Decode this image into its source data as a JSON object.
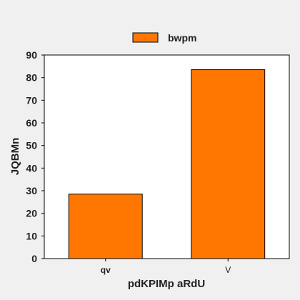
{
  "chart_data": {
    "type": "bar",
    "categories": [
      "qv",
      "V"
    ],
    "series": [
      {
        "name": "bwpm",
        "values": [
          28.5,
          83.5
        ]
      }
    ],
    "xlabel": "pdKPIMp  aRdU",
    "ylabel": "JQBMn",
    "ylim": [
      0,
      90
    ],
    "yticks": [
      0,
      10,
      20,
      30,
      40,
      50,
      60,
      70,
      80,
      90
    ],
    "grid": false,
    "legend_position": "top-center",
    "colors": {
      "bar": "#ff7700",
      "bar_stroke": "#000000",
      "plot_bg": "#ffffff",
      "page_bg": "#f0f0f0"
    }
  }
}
